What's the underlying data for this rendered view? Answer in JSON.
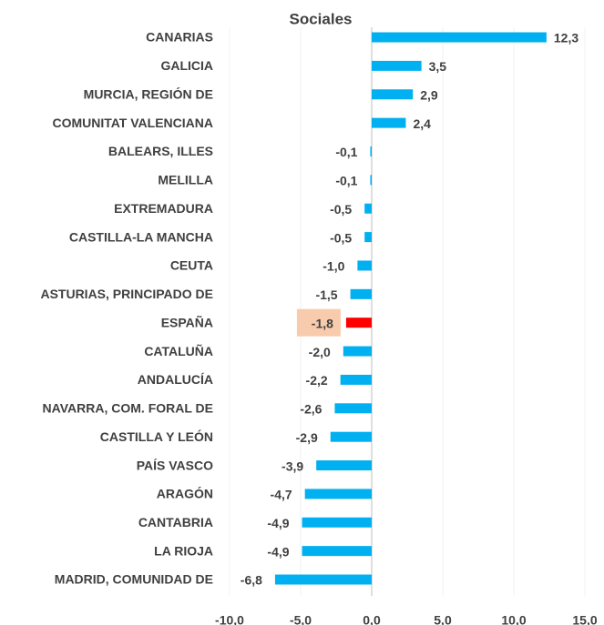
{
  "chart_data": {
    "type": "hbar",
    "title": "Sociales",
    "categories": [
      "CANARIAS",
      "GALICIA",
      "MURCIA, REGIÓN DE",
      "COMUNITAT VALENCIANA",
      "BALEARS, ILLES",
      "MELILLA",
      "EXTREMADURA",
      "CASTILLA-LA MANCHA",
      "CEUTA",
      "ASTURIAS, PRINCIPADO DE",
      "ESPAÑA",
      "CATALUÑA",
      "ANDALUCÍA",
      "NAVARRA, COM. FORAL DE",
      "CASTILLA Y LEÓN",
      "PAÍS VASCO",
      "ARAGÓN",
      "CANTABRIA",
      "LA RIOJA",
      "MADRID, COMUNIDAD DE"
    ],
    "values": [
      12.3,
      3.5,
      2.9,
      2.4,
      -0.1,
      -0.1,
      -0.5,
      -0.5,
      -1.0,
      -1.5,
      -1.8,
      -2.0,
      -2.2,
      -2.6,
      -2.9,
      -3.9,
      -4.7,
      -4.9,
      -4.9,
      -6.8
    ],
    "value_labels": [
      "12,3",
      "3,5",
      "2,9",
      "2,4",
      "-0,1",
      "-0,1",
      "-0,5",
      "-0,5",
      "-1,0",
      "-1,5",
      "-1,8",
      "-2,0",
      "-2,2",
      "-2,6",
      "-2,9",
      "-3,9",
      "-4,7",
      "-4,9",
      "-4,9",
      "-6,8"
    ],
    "colors": [
      "#00b0f0",
      "#00b0f0",
      "#00b0f0",
      "#00b0f0",
      "#00b0f0",
      "#00b0f0",
      "#00b0f0",
      "#00b0f0",
      "#00b0f0",
      "#00b0f0",
      "#ff0000",
      "#00b0f0",
      "#00b0f0",
      "#00b0f0",
      "#00b0f0",
      "#00b0f0",
      "#00b0f0",
      "#00b0f0",
      "#00b0f0",
      "#00b0f0"
    ],
    "label_backgrounds": [
      null,
      null,
      null,
      null,
      null,
      null,
      null,
      null,
      null,
      null,
      "#f8cbad",
      null,
      null,
      null,
      null,
      null,
      null,
      null,
      null,
      null
    ],
    "xlim": [
      -10,
      15
    ],
    "xticks": [
      {
        "value": -10,
        "label": "-10,0"
      },
      {
        "value": -5,
        "label": "-5,0"
      },
      {
        "value": 0,
        "label": "0,0"
      },
      {
        "value": 5,
        "label": "5,0"
      },
      {
        "value": 10,
        "label": "10,0"
      },
      {
        "value": 15,
        "label": "15,0"
      }
    ],
    "grid": true
  }
}
